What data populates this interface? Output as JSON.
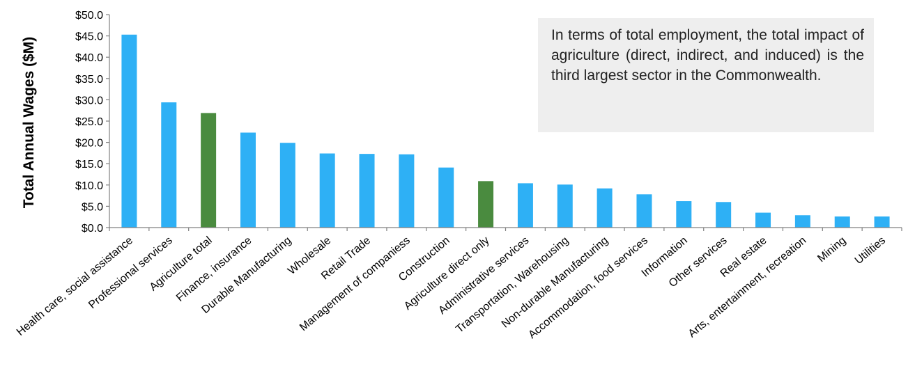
{
  "chart_data": {
    "type": "bar",
    "ylabel": "Total Annual Wages ($M)",
    "xlabel": "",
    "ylim": [
      0,
      50
    ],
    "y_ticks": [
      "$0.0",
      "$5.0",
      "$10.0",
      "$15.0",
      "$20.0",
      "$25.0",
      "$30.0",
      "$35.0",
      "$40.0",
      "$45.0",
      "$50.0"
    ],
    "y_tick_values": [
      0,
      5,
      10,
      15,
      20,
      25,
      30,
      35,
      40,
      45,
      50
    ],
    "categories": [
      "Health care,  social assistance",
      "Professional services",
      "Agriculture total",
      "Finance, insurance",
      "Durable Manufacturing",
      "Wholesale",
      "Retail Trade",
      "Management of companiess",
      "Construction",
      "Agriculture direct only",
      "Administrative services",
      "Transportation, Warehousing",
      "Non-durable Manufacturing",
      "Accommodation, food services",
      "Information",
      "Other services",
      "Real estate",
      "Arts, entertainment, recreation",
      "Mining",
      "Utilities"
    ],
    "values": [
      45.3,
      29.4,
      26.9,
      22.3,
      19.9,
      17.4,
      17.3,
      17.2,
      14.1,
      10.9,
      10.4,
      10.1,
      9.2,
      7.8,
      6.2,
      6.0,
      3.5,
      2.9,
      2.6,
      2.6
    ],
    "highlighted": [
      false,
      false,
      true,
      false,
      false,
      false,
      false,
      false,
      false,
      true,
      false,
      false,
      false,
      false,
      false,
      false,
      false,
      false,
      false,
      false
    ],
    "colors": {
      "default": "#2eb0f5",
      "highlight": "#4a8b3f",
      "axis": "#808080"
    },
    "grid": false,
    "legend": "none"
  },
  "annotation": {
    "text": "In terms of total employment, the total impact of agriculture (direct, indirect, and induced) is the third largest sector in the Commonwealth."
  }
}
